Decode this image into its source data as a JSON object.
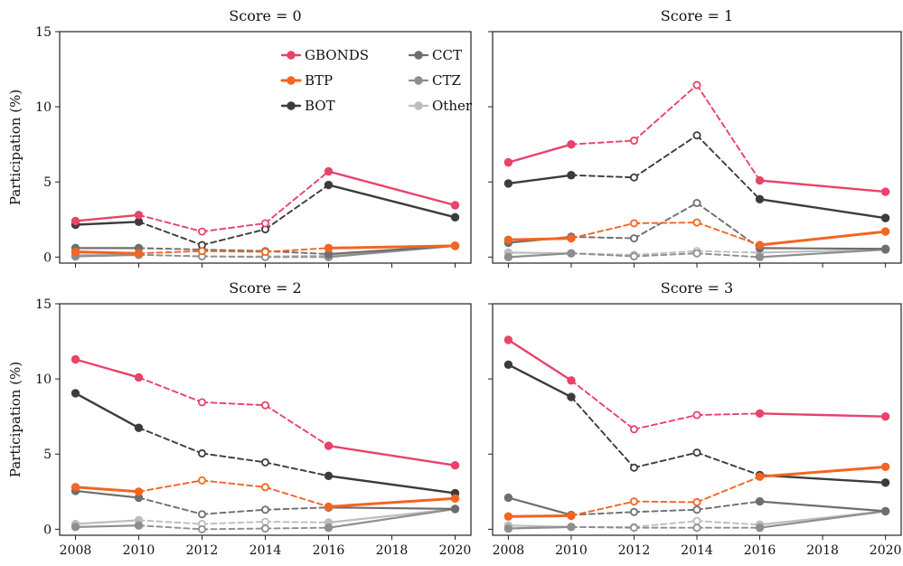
{
  "chart_data": {
    "type": "line",
    "ylabel": "Participation (%)",
    "xlim": [
      2007.5,
      2020.5
    ],
    "ylim": [
      -0.4,
      15
    ],
    "x_ticks": [
      "2008",
      "2010",
      "2012",
      "2014",
      "2016",
      "2018",
      "2020"
    ],
    "x_tick_values": [
      2008,
      2010,
      2012,
      2014,
      2016,
      2018,
      2020
    ],
    "y_ticks": [
      "0",
      "5",
      "10",
      "15"
    ],
    "y_tick_values": [
      0,
      5,
      10,
      15
    ],
    "grid": false,
    "legend_position": "top-right of first panel",
    "x": [
      2008,
      2010,
      2012,
      2014,
      2016,
      2020
    ],
    "series_styles": {
      "GBONDS": {
        "color": "#e8436a",
        "width": 2.4
      },
      "BTP": {
        "color": "#f26522",
        "width": 3.0
      },
      "BOT": {
        "color": "#3c3c3c",
        "width": 2.4
      },
      "CCT": {
        "color": "#6e6e6e",
        "width": 2.2
      },
      "CTZ": {
        "color": "#8e8e8e",
        "width": 2.2
      },
      "Other": {
        "color": "#bdbdbd",
        "width": 2.2
      }
    },
    "legend": [
      {
        "label": "GBONDS",
        "series": "GBONDS"
      },
      {
        "label": "CCT",
        "series": "CCT"
      },
      {
        "label": "BTP",
        "series": "BTP"
      },
      {
        "label": "CTZ",
        "series": "CTZ"
      },
      {
        "label": "BOT",
        "series": "BOT"
      },
      {
        "label": "Other",
        "series": "Other"
      }
    ],
    "panels": [
      {
        "title": "Score = 0",
        "series": [
          {
            "name": "GBONDS",
            "values": [
              2.4,
              2.8,
              1.7,
              2.25,
              5.7,
              3.45
            ]
          },
          {
            "name": "BTP",
            "values": [
              0.35,
              0.25,
              0.4,
              0.35,
              0.6,
              0.75
            ]
          },
          {
            "name": "BOT",
            "values": [
              2.15,
              2.35,
              0.8,
              1.85,
              4.8,
              2.65
            ]
          },
          {
            "name": "CCT",
            "values": [
              0.6,
              0.6,
              0.5,
              0.4,
              0.2,
              0.75
            ]
          },
          {
            "name": "CTZ",
            "values": [
              0.05,
              0.15,
              0.05,
              0.0,
              0.0,
              0.75
            ]
          },
          {
            "name": "Other",
            "values": [
              0.15,
              0.15,
              0.05,
              0.05,
              0.1,
              0.75
            ]
          }
        ]
      },
      {
        "title": "Score = 1",
        "series": [
          {
            "name": "GBONDS",
            "values": [
              6.3,
              7.5,
              7.75,
              11.45,
              5.1,
              4.35
            ]
          },
          {
            "name": "BTP",
            "values": [
              1.15,
              1.25,
              2.25,
              2.3,
              0.8,
              1.7
            ]
          },
          {
            "name": "BOT",
            "values": [
              4.9,
              5.45,
              5.3,
              8.1,
              3.85,
              2.6
            ]
          },
          {
            "name": "CCT",
            "values": [
              0.95,
              1.35,
              1.25,
              3.6,
              0.6,
              0.55
            ]
          },
          {
            "name": "CTZ",
            "values": [
              0.0,
              0.25,
              0.05,
              0.25,
              0.0,
              0.5
            ]
          },
          {
            "name": "Other",
            "values": [
              0.3,
              0.25,
              0.15,
              0.4,
              0.3,
              0.5
            ]
          }
        ]
      },
      {
        "title": "Score = 2",
        "series": [
          {
            "name": "GBONDS",
            "values": [
              11.3,
              10.1,
              8.45,
              8.25,
              5.55,
              4.25
            ]
          },
          {
            "name": "BTP",
            "values": [
              2.8,
              2.5,
              3.25,
              2.8,
              1.5,
              2.05
            ]
          },
          {
            "name": "BOT",
            "values": [
              9.05,
              6.75,
              5.05,
              4.45,
              3.55,
              2.4
            ]
          },
          {
            "name": "CCT",
            "values": [
              2.55,
              2.1,
              1.0,
              1.3,
              1.45,
              1.35
            ]
          },
          {
            "name": "CTZ",
            "values": [
              0.15,
              0.25,
              0.0,
              0.05,
              0.1,
              1.35
            ]
          },
          {
            "name": "Other",
            "values": [
              0.35,
              0.6,
              0.35,
              0.5,
              0.45,
              1.35
            ]
          }
        ]
      },
      {
        "title": "Score = 3",
        "series": [
          {
            "name": "GBONDS",
            "values": [
              12.6,
              9.9,
              6.65,
              7.6,
              7.7,
              7.5
            ]
          },
          {
            "name": "BTP",
            "values": [
              0.85,
              0.9,
              1.85,
              1.8,
              3.5,
              4.15
            ]
          },
          {
            "name": "BOT",
            "values": [
              10.95,
              8.8,
              4.1,
              5.1,
              3.6,
              3.1
            ]
          },
          {
            "name": "CCT",
            "values": [
              2.1,
              0.95,
              1.15,
              1.3,
              1.85,
              1.2
            ]
          },
          {
            "name": "CTZ",
            "values": [
              0.05,
              0.15,
              0.1,
              0.1,
              0.1,
              1.2
            ]
          },
          {
            "name": "Other",
            "values": [
              0.25,
              0.15,
              0.15,
              0.55,
              0.3,
              1.2
            ]
          }
        ]
      }
    ]
  }
}
